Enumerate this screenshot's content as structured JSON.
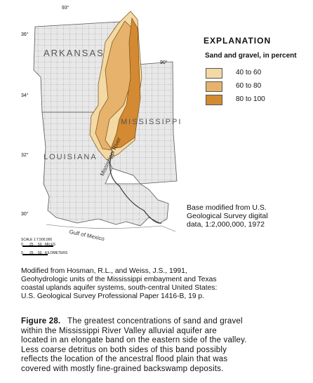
{
  "map": {
    "state_labels": [
      "ARKANSAS",
      "MISSISSIPPI",
      "LOUISIANA"
    ],
    "water_labels": [
      "Mississippi River",
      "Gulf of Mexico"
    ],
    "longitudes": [
      "93°",
      "90°"
    ],
    "latitudes": [
      "36°",
      "34°",
      "32°",
      "30°"
    ]
  },
  "legend": {
    "title": "EXPLANATION",
    "subtitle": "Sand and gravel, in percent",
    "items": [
      {
        "label": "40 to 60",
        "color": "#f3d9a4"
      },
      {
        "label": "60 to 80",
        "color": "#e6b26c"
      },
      {
        "label": "80 to 100",
        "color": "#d38a32"
      }
    ]
  },
  "scale": {
    "ratio": "SCALE 1:7,500,000",
    "miles": [
      "0",
      "25",
      "50",
      "MILES"
    ],
    "kilometers": [
      "0",
      "25",
      "50",
      "KILOMETERS"
    ]
  },
  "base_note": [
    "Base modified from U.S.",
    "Geological Survey digital",
    "data, 1:2,000,000, 1972"
  ],
  "citation": [
    "Modified from Hosman, R.L., and Weiss, J.S., 1991,",
    "Geohydrologic units of the Mississippi embayment and Texas",
    "coastal uplands aquifer systems, south-central United States:",
    "U.S. Geological Survey Professional Paper 1416-B, 19 p."
  ],
  "caption": {
    "label": "Figure 28.",
    "lines": [
      " The greatest concentrations of sand and gravel",
      "within the Mississippi River Valley alluvial aquifer are",
      "located in an elongate band on the eastern side of the valley.",
      "Less coarse detritus on both sides of this band possibly",
      "reflects the location of the ancestral flood plain that was",
      "covered with mostly fine-grained backswamp deposits."
    ]
  }
}
